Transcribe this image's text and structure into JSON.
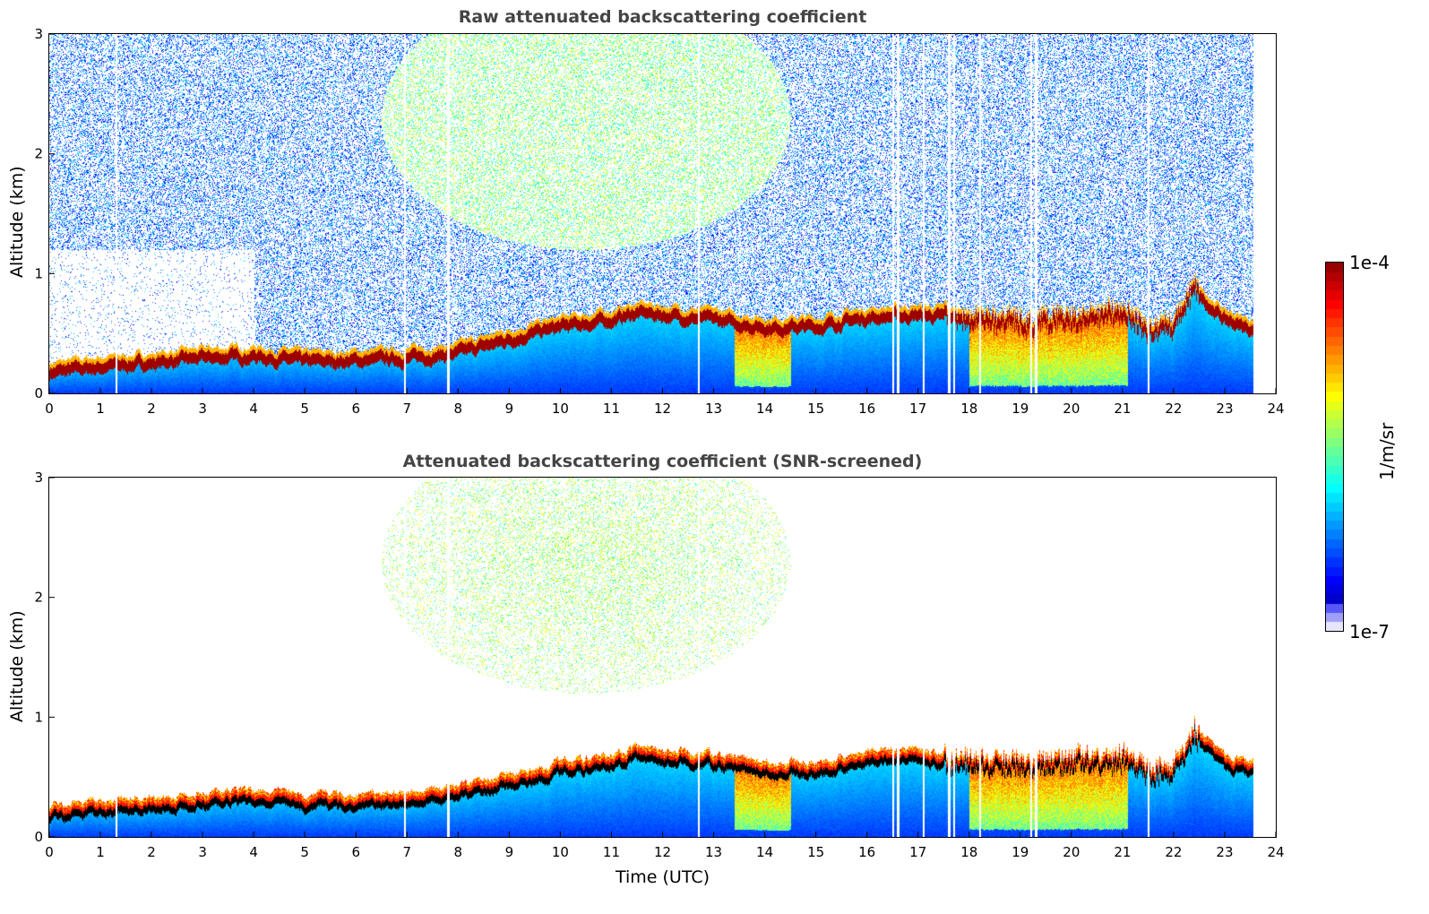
{
  "chart_data": [
    {
      "type": "heatmap",
      "title": "Raw attenuated backscattering coefficient",
      "xlabel": "",
      "ylabel": "Altitude (km)",
      "xlim": [
        0,
        24
      ],
      "ylim": [
        0,
        3
      ],
      "xticks": [
        0,
        1,
        2,
        3,
        4,
        5,
        6,
        7,
        8,
        9,
        10,
        11,
        12,
        13,
        14,
        15,
        16,
        17,
        18,
        19,
        20,
        21,
        22,
        23,
        24
      ],
      "yticks": [
        0,
        1,
        2,
        3
      ],
      "screened": false
    },
    {
      "type": "heatmap",
      "title": "Attenuated backscattering coefficient (SNR-screened)",
      "xlabel": "Time (UTC)",
      "ylabel": "Altitude (km)",
      "xlim": [
        0,
        24
      ],
      "ylim": [
        0,
        3
      ],
      "xticks": [
        0,
        1,
        2,
        3,
        4,
        5,
        6,
        7,
        8,
        9,
        10,
        11,
        12,
        13,
        14,
        15,
        16,
        17,
        18,
        19,
        20,
        21,
        22,
        23,
        24
      ],
      "yticks": [
        0,
        1,
        2,
        3
      ],
      "screened": true
    }
  ],
  "boundary_layer_top_km": {
    "hours": [
      0,
      1,
      2,
      3,
      4,
      5,
      6,
      7,
      8,
      9,
      10,
      11,
      11.5,
      12,
      13,
      14,
      15,
      16,
      17,
      18,
      19,
      20,
      21,
      21.5,
      22,
      22.4,
      23,
      23.55
    ],
    "values": [
      0.22,
      0.27,
      0.3,
      0.34,
      0.36,
      0.31,
      0.32,
      0.34,
      0.38,
      0.5,
      0.6,
      0.66,
      0.72,
      0.7,
      0.66,
      0.6,
      0.6,
      0.68,
      0.7,
      0.66,
      0.62,
      0.66,
      0.7,
      0.56,
      0.6,
      0.9,
      0.66,
      0.58
    ]
  },
  "data_end_hour": 23.55,
  "colorbar": {
    "label": "1/m/sr",
    "max_label": "1e-4",
    "min_label": "1e-7",
    "colormap": "jet"
  }
}
